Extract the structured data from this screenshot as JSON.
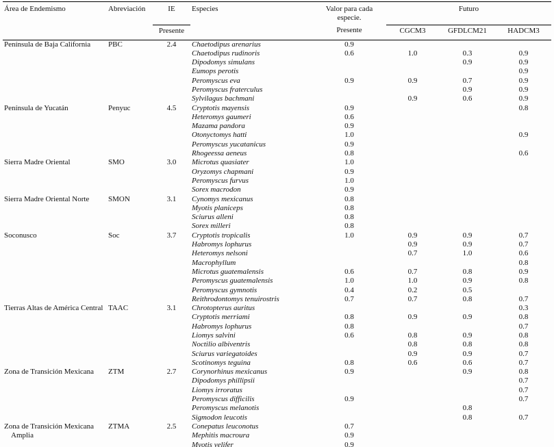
{
  "table": {
    "header": {
      "area": "Área de Endemismo",
      "abbreviation": "Abreviación",
      "ie": "IE",
      "ie_sub": "Presente",
      "species": "Especies",
      "value": "Valor para cada especie.",
      "value_sub": "Presente",
      "future": "Futuro",
      "models": [
        "CGCM3",
        "GFDLCM21",
        "HADCM3"
      ]
    },
    "groups": [
      {
        "area": "Península de Baja California",
        "abbreviation": "PBC",
        "ie": "2.4",
        "species": [
          {
            "name": "Chaetodipus arenarius",
            "values": [
              "0.9",
              "",
              "",
              ""
            ]
          },
          {
            "name": "Chaetodipus rudinoris",
            "values": [
              "0.6",
              "1.0",
              "0.3",
              "0.9"
            ]
          },
          {
            "name": "Dipodomys simulans",
            "values": [
              "",
              "",
              "0.9",
              "0.9"
            ]
          },
          {
            "name": "Eumops perotis",
            "values": [
              "",
              "",
              "",
              "0.9"
            ]
          },
          {
            "name": "Peromyscus eva",
            "values": [
              "0.9",
              "0.9",
              "0.7",
              "0.9"
            ]
          },
          {
            "name": "Peromyscus fraterculus",
            "values": [
              "",
              "",
              "0.9",
              "0.9"
            ]
          },
          {
            "name": "Sylvilagus bachmani",
            "values": [
              "",
              "0.9",
              "0.6",
              "0.9"
            ]
          }
        ]
      },
      {
        "area": "Península de Yucatán",
        "abbreviation": "Penyuc",
        "ie": "4.5",
        "species": [
          {
            "name": "Cryptotis mayensis",
            "values": [
              "0.9",
              "",
              "",
              "0.8"
            ]
          },
          {
            "name": "Heteromys gaumeri",
            "values": [
              "0.6",
              "",
              "",
              ""
            ]
          },
          {
            "name": "Mazama pandora",
            "values": [
              "0.9",
              "",
              "",
              ""
            ]
          },
          {
            "name": "Otonyctomys hatti",
            "values": [
              "1.0",
              "",
              "",
              "0.9"
            ]
          },
          {
            "name": "Peromyscus yucatanicus",
            "values": [
              "0.9",
              "",
              "",
              ""
            ]
          },
          {
            "name": "Rhogeessa aeneus",
            "values": [
              "0.8",
              "",
              "",
              "0.6"
            ]
          }
        ]
      },
      {
        "area": "Sierra Madre Oriental",
        "abbreviation": "SMO",
        "ie": "3.0",
        "species": [
          {
            "name": "Microtus quasiater",
            "values": [
              "1.0",
              "",
              "",
              ""
            ]
          },
          {
            "name": "Oryzomys chapmani",
            "values": [
              "0.9",
              "",
              "",
              ""
            ]
          },
          {
            "name": "Peromyscus furvus",
            "values": [
              "1.0",
              "",
              "",
              ""
            ]
          },
          {
            "name": "Sorex macrodon",
            "values": [
              "0.9",
              "",
              "",
              ""
            ]
          }
        ]
      },
      {
        "area": "Sierra Madre Oriental Norte",
        "abbreviation": "SMON",
        "ie": "3.1",
        "species": [
          {
            "name": "Cynomys mexicanus",
            "values": [
              "0.8",
              "",
              "",
              ""
            ]
          },
          {
            "name": "Myotis planiceps",
            "values": [
              "0.8",
              "",
              "",
              ""
            ]
          },
          {
            "name": "Sciurus alleni",
            "values": [
              "0.8",
              "",
              "",
              ""
            ]
          },
          {
            "name": "Sorex milleri",
            "values": [
              "0.8",
              "",
              "",
              ""
            ]
          }
        ]
      },
      {
        "area": "Soconusco",
        "abbreviation": "Soc",
        "ie": "3.7",
        "species": [
          {
            "name": "Cryptotis tropicalis",
            "values": [
              "1.0",
              "0.9",
              "0.9",
              "0.7"
            ]
          },
          {
            "name": "Habromys lophurus",
            "values": [
              "",
              "0.9",
              "0.9",
              "0.7"
            ]
          },
          {
            "name": "Heteromys nelsoni",
            "values": [
              "",
              "0.7",
              "1.0",
              "0.6"
            ]
          },
          {
            "name": "Macrophyllum",
            "values": [
              "",
              "",
              "",
              "0.8"
            ]
          },
          {
            "name": "Microtus guatemalensis",
            "values": [
              "0.6",
              "0.7",
              "0.8",
              "0.9"
            ]
          },
          {
            "name": "Peromyscus guatemalensis",
            "values": [
              "1.0",
              "1.0",
              "0.9",
              "0.8"
            ]
          },
          {
            "name": "Peromyscus gymnotis",
            "values": [
              "0.4",
              "0.2",
              "0.5",
              ""
            ]
          },
          {
            "name": "Reithrodontomys tenuirostris",
            "values": [
              "0.7",
              "0.7",
              "0.8",
              "0.7"
            ]
          }
        ]
      },
      {
        "area": "Tierras Altas de América Central",
        "abbreviation": "TAAC",
        "ie": "3.1",
        "species": [
          {
            "name": "Chrotopterus auritus",
            "values": [
              "",
              "",
              "",
              "0.3"
            ]
          },
          {
            "name": "Cryptotis merriami",
            "values": [
              "0.8",
              "0.9",
              "0.9",
              "0.8"
            ]
          },
          {
            "name": "Habromys lophurus",
            "values": [
              "0.8",
              "",
              "",
              "0.7"
            ]
          },
          {
            "name": "Liomys salvini",
            "values": [
              "0.6",
              "0.8",
              "0.9",
              "0.8"
            ]
          },
          {
            "name": "Noctilio albiventris",
            "values": [
              "",
              "0.8",
              "0.8",
              "0.8"
            ]
          },
          {
            "name": "Sciurus variegatoides",
            "values": [
              "",
              "0.9",
              "0.9",
              "0.7"
            ]
          },
          {
            "name": "Scotinomys teguina",
            "values": [
              "0.8",
              "0.6",
              "0.6",
              "0.7"
            ]
          }
        ]
      },
      {
        "area": "Zona de Transición Mexicana",
        "abbreviation": "ZTM",
        "ie": "2.7",
        "species": [
          {
            "name": "Corynorhinus mexicanus",
            "values": [
              "0.9",
              "",
              "0.9",
              "0.8"
            ]
          },
          {
            "name": "Dipodomys phillipsii",
            "values": [
              "",
              "",
              "",
              "0.7"
            ]
          },
          {
            "name": "Liomys irroratus",
            "values": [
              "",
              "",
              "",
              "0.7"
            ]
          },
          {
            "name": "Peromyscus difficilis",
            "values": [
              "0.9",
              "",
              "",
              "0.7"
            ]
          },
          {
            "name": "Peromyscus melanotis",
            "values": [
              "",
              "",
              "0.8",
              ""
            ]
          },
          {
            "name": "Sigmodon leucotis",
            "values": [
              "",
              "",
              "0.8",
              "0.7"
            ]
          }
        ]
      },
      {
        "area": "Zona de Transición Mexicana Amplia",
        "abbreviation": "ZTMA",
        "ie": "2.5",
        "species": [
          {
            "name": "Conepatus leuconotus",
            "values": [
              "0.7",
              "",
              "",
              ""
            ]
          },
          {
            "name": "Mephitis macroura",
            "values": [
              "0.9",
              "",
              "",
              ""
            ]
          },
          {
            "name": "Myotis velifer",
            "values": [
              "0.9",
              "",
              "",
              ""
            ]
          }
        ]
      }
    ]
  }
}
